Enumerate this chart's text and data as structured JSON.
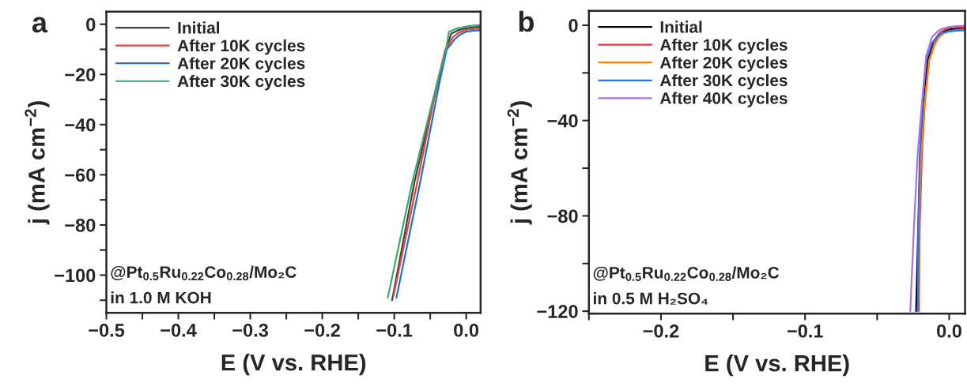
{
  "chart_data": [
    {
      "type": "line",
      "title": "a",
      "xlabel": "E (V vs. RHE)",
      "ylabel": "j (mA cm$^{−2}$)",
      "xlim": [
        -0.5,
        0.02
      ],
      "ylim": [
        -115,
        5
      ],
      "xticks": [
        {
          "value": -0.5,
          "label": "−0.5"
        },
        {
          "value": -0.45,
          "label": null
        },
        {
          "value": -0.4,
          "label": "−0.4"
        },
        {
          "value": -0.35,
          "label": null
        },
        {
          "value": -0.3,
          "label": "−0.3"
        },
        {
          "value": -0.25,
          "label": null
        },
        {
          "value": -0.2,
          "label": "−0.2"
        },
        {
          "value": -0.15,
          "label": null
        },
        {
          "value": -0.1,
          "label": "−0.1"
        },
        {
          "value": -0.05,
          "label": null
        },
        {
          "value": 0,
          "label": "0.0"
        }
      ],
      "yticks": [
        0,
        {
          "value": -10,
          "label": null
        },
        {
          "value": -20,
          "label": "−20"
        },
        {
          "value": -30,
          "label": null
        },
        {
          "value": -40,
          "label": "−40"
        },
        {
          "value": -50,
          "label": null
        },
        {
          "value": -60,
          "label": "−60"
        },
        {
          "value": -70,
          "label": null
        },
        {
          "value": -80,
          "label": "−80"
        },
        {
          "value": -90,
          "label": null
        },
        {
          "value": -100,
          "label": "−100"
        },
        {
          "value": -110,
          "label": null
        }
      ],
      "legend": "top left",
      "grid": false,
      "annotations": [
        "@Pt$_{0.5}$Ru$_{0.22}$Co$_{0.28}$/Mo₂C",
        "in 1.0 M KOH"
      ],
      "series": [
        {
          "name": "Initial",
          "color": "#404040",
          "x": [
            0.02,
            0.01,
            0,
            -0.012,
            -0.021,
            -0.028,
            -0.04,
            -0.072,
            -0.103
          ],
          "values": [
            -1,
            -1.2,
            -1.6,
            -2.5,
            -3.8,
            -10,
            -24,
            -63,
            -110
          ]
        },
        {
          "name": "After 10K cycles",
          "color": "#e8413c",
          "x": [
            0.02,
            0.01,
            0,
            -0.01,
            -0.018,
            -0.029,
            -0.04,
            -0.068,
            -0.101
          ],
          "values": [
            -1.7,
            -1.9,
            -2.3,
            -3.3,
            -5,
            -10,
            -23,
            -63,
            -108
          ]
        },
        {
          "name": "After 20K cycles",
          "color": "#1f6fe0",
          "x": [
            0.02,
            0.01,
            0,
            -0.008,
            -0.016,
            -0.027,
            -0.037,
            -0.064,
            -0.097
          ],
          "values": [
            -2.4,
            -2.6,
            -3,
            -4,
            -6,
            -10,
            -23,
            -63,
            -109
          ]
        },
        {
          "name": "After 30K cycles",
          "color": "#3aaa6a",
          "x": [
            0.02,
            0.01,
            0,
            -0.014,
            -0.024,
            -0.028,
            -0.041,
            -0.075,
            -0.109
          ],
          "values": [
            -0.3,
            -0.5,
            -0.9,
            -1.8,
            -3,
            -10,
            -24,
            -63,
            -109
          ]
        }
      ]
    },
    {
      "type": "line",
      "title": "b",
      "xlabel": "E (V vs. RHE)",
      "ylabel": "j (mA cm$^{−2}$)",
      "xlim": [
        -0.25,
        0.011
      ],
      "ylim": [
        -121,
        6
      ],
      "xticks": [
        {
          "value": -0.25,
          "label": null
        },
        {
          "value": -0.2,
          "label": "−0.2"
        },
        {
          "value": -0.15,
          "label": null
        },
        {
          "value": -0.1,
          "label": "−0.1"
        },
        {
          "value": -0.05,
          "label": null
        },
        {
          "value": 0,
          "label": "0.0"
        }
      ],
      "yticks": [
        0,
        {
          "value": -20,
          "label": null
        },
        {
          "value": -40,
          "label": "−40"
        },
        {
          "value": -60,
          "label": null
        },
        {
          "value": -80,
          "label": "−80"
        },
        {
          "value": -100,
          "label": null
        },
        {
          "value": -120,
          "label": "−120"
        }
      ],
      "legend": "top left",
      "grid": false,
      "annotations": [
        "@Pt$_{0.5}$Ru$_{0.22}$Co$_{0.28}$/Mo₂C",
        "in 0.5 M H₂SO₄"
      ],
      "series": [
        {
          "name": "Initial",
          "color": "#000000",
          "x": [
            0.011,
            0.005,
            0,
            -0.004,
            -0.007,
            -0.011,
            -0.015,
            -0.018,
            -0.02,
            -0.0215,
            -0.023
          ],
          "values": [
            -1.3,
            -1.5,
            -1.8,
            -2.5,
            -3.6,
            -7,
            -15,
            -33,
            -55,
            -85,
            -120
          ]
        },
        {
          "name": "After 10K cycles",
          "color": "#f0303a",
          "x": [
            0.011,
            0.005,
            0,
            -0.003,
            -0.006,
            -0.01,
            -0.014,
            -0.017,
            -0.019,
            -0.0205,
            -0.021
          ],
          "values": [
            -0.6,
            -0.8,
            -1.1,
            -1.8,
            -3,
            -7,
            -15,
            -33,
            -55,
            -85,
            -120
          ]
        },
        {
          "name": "After 20K cycles",
          "color": "#ff8010",
          "x": [
            0.011,
            0.005,
            0,
            -0.004,
            -0.007,
            -0.01,
            -0.014,
            -0.017,
            -0.0195,
            -0.021,
            -0.0215
          ],
          "values": [
            -1.6,
            -2,
            -2.5,
            -3.5,
            -5,
            -8,
            -15,
            -33,
            -55,
            -85,
            -120
          ]
        },
        {
          "name": "After 30K cycles",
          "color": "#1e78ff",
          "x": [
            0.011,
            0.005,
            0,
            -0.005,
            -0.008,
            -0.012,
            -0.016,
            -0.0185,
            -0.0205,
            -0.0215,
            -0.0218
          ],
          "values": [
            -2.1,
            -2.3,
            -2.6,
            -3.3,
            -4.4,
            -7.5,
            -15,
            -33,
            -55,
            -85,
            -120
          ]
        },
        {
          "name": "After 40K cycles",
          "color": "#b070e0",
          "x": [
            0.011,
            0.005,
            0,
            -0.005,
            -0.008,
            -0.012,
            -0.016,
            -0.019,
            -0.022,
            -0.0245,
            -0.027
          ],
          "values": [
            -0.2,
            -0.4,
            -0.7,
            -1.5,
            -2.6,
            -5,
            -13,
            -33,
            -55,
            -85,
            -120
          ]
        }
      ]
    }
  ]
}
